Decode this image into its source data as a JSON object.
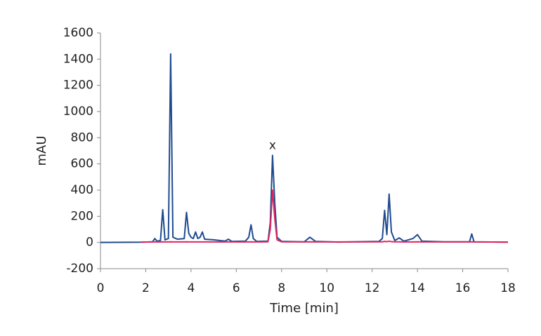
{
  "chart_data": {
    "type": "line",
    "x_label": "Time [min]",
    "y_label": "mAU",
    "x": [
      0,
      1.8,
      2.3,
      2.4,
      2.5,
      2.65,
      2.75,
      2.85,
      3.0,
      3.1,
      3.2,
      3.4,
      3.7,
      3.8,
      3.9,
      4.0,
      4.1,
      4.2,
      4.3,
      4.4,
      4.5,
      4.6,
      5.0,
      5.5,
      5.65,
      5.8,
      6.4,
      6.55,
      6.65,
      6.75,
      6.9,
      7.4,
      7.5,
      7.6,
      7.7,
      7.8,
      8.0,
      9.0,
      9.25,
      9.5,
      10.5,
      12.3,
      12.45,
      12.55,
      12.65,
      12.75,
      12.85,
      13.0,
      13.2,
      13.4,
      13.8,
      14.0,
      14.2,
      15.2,
      16.3,
      16.4,
      16.5,
      18
    ],
    "series": [
      {
        "color": "#1f4b8e",
        "values": [
          0,
          2,
          5,
          30,
          10,
          15,
          250,
          20,
          30,
          1440,
          40,
          25,
          30,
          230,
          70,
          40,
          30,
          80,
          30,
          40,
          80,
          25,
          20,
          10,
          25,
          8,
          10,
          40,
          135,
          30,
          8,
          10,
          150,
          665,
          300,
          40,
          8,
          5,
          40,
          8,
          3,
          8,
          30,
          245,
          60,
          370,
          80,
          15,
          35,
          10,
          30,
          60,
          10,
          5,
          5,
          65,
          5,
          2
        ]
      },
      {
        "color": "#e0245e",
        "values": [
          null,
          3,
          4,
          4,
          4,
          4,
          5,
          4,
          4,
          5,
          4,
          4,
          4,
          5,
          4,
          4,
          4,
          4,
          4,
          4,
          4,
          4,
          4,
          4,
          4,
          4,
          4,
          4,
          5,
          4,
          4,
          5,
          100,
          400,
          180,
          20,
          5,
          4,
          5,
          4,
          4,
          5,
          5,
          8,
          6,
          10,
          6,
          5,
          5,
          4,
          4,
          5,
          4,
          4,
          4,
          5,
          4,
          3
        ]
      }
    ],
    "annotations": [
      {
        "text": "x",
        "x": 7.6
      }
    ],
    "xlim": [
      0,
      18
    ],
    "xticks": [
      0,
      2,
      4,
      6,
      8,
      10,
      12,
      14,
      16,
      18
    ],
    "ylim": [
      -200,
      1600
    ],
    "yticks": [
      -200,
      0,
      200,
      400,
      600,
      800,
      1000,
      1200,
      1400,
      1600
    ]
  }
}
